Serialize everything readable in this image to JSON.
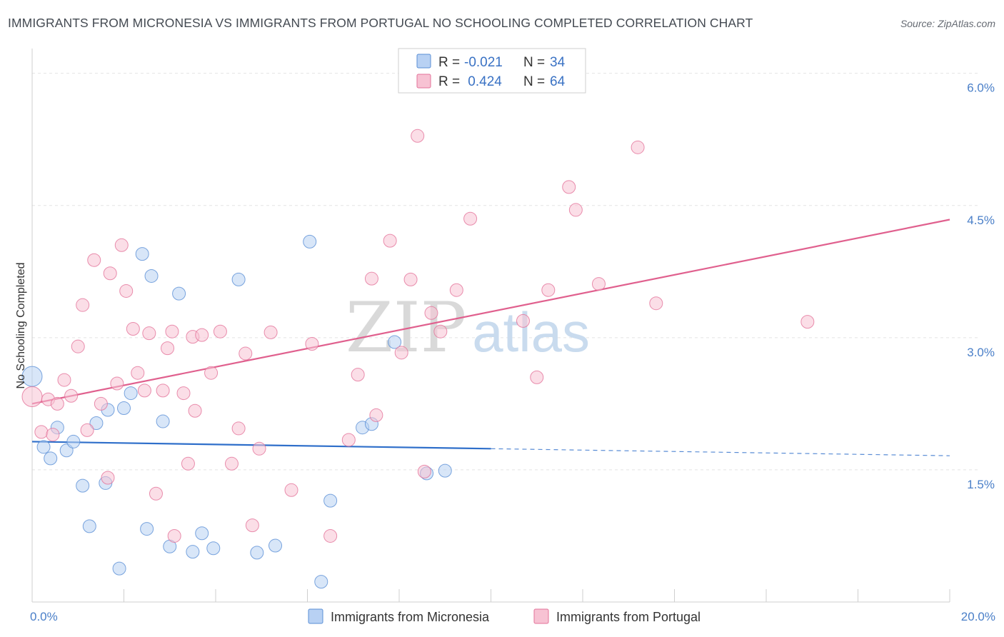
{
  "title": "IMMIGRANTS FROM MICRONESIA VS IMMIGRANTS FROM PORTUGAL NO SCHOOLING COMPLETED CORRELATION CHART",
  "source": "Source: ZipAtlas.com",
  "watermark": {
    "zip": "ZIP",
    "atlas": "atlas"
  },
  "colors": {
    "micronesia": "#5a8fd6",
    "micronesia_fill": "#b8d1f3",
    "portugal": "#e3739a",
    "portugal_fill": "#f7c2d3",
    "tick": "#4a7fc8"
  },
  "legend": {
    "rows": [
      {
        "r_label": "R = ",
        "r_value": "-0.021",
        "n_label": "N = ",
        "n_value": "34"
      },
      {
        "r_label": "R = ",
        "r_value": " 0.424",
        "n_label": "N = ",
        "n_value": "64"
      }
    ]
  },
  "chart_data": {
    "type": "scatter",
    "ylabel": "No Schooling Completed",
    "xlim": [
      0,
      20
    ],
    "ylim": [
      0,
      6.2
    ],
    "x_tick_labels": [
      {
        "v": 0,
        "label": "0.0%"
      },
      {
        "v": 20,
        "label": "20.0%"
      }
    ],
    "y_tick_labels": [
      {
        "v": 1.5,
        "label": "1.5%"
      },
      {
        "v": 3.0,
        "label": "3.0%"
      },
      {
        "v": 4.5,
        "label": "4.5%"
      },
      {
        "v": 6.0,
        "label": "6.0%"
      }
    ],
    "series": [
      {
        "name": "Immigrants from Micronesia",
        "trend": {
          "x0": 0,
          "y0": 1.82,
          "x1": 10,
          "y1": 1.74,
          "dash_x1": 20,
          "dash_y1": 1.66
        },
        "points": [
          [
            0.0,
            2.56
          ],
          [
            0.25,
            1.76
          ],
          [
            0.4,
            1.63
          ],
          [
            0.55,
            1.98
          ],
          [
            0.75,
            1.72
          ],
          [
            0.9,
            1.82
          ],
          [
            1.1,
            1.32
          ],
          [
            1.25,
            0.86
          ],
          [
            1.4,
            2.03
          ],
          [
            1.6,
            1.35
          ],
          [
            1.65,
            2.18
          ],
          [
            1.9,
            0.38
          ],
          [
            2.0,
            2.2
          ],
          [
            2.15,
            2.37
          ],
          [
            2.4,
            3.95
          ],
          [
            2.5,
            0.83
          ],
          [
            2.6,
            3.7
          ],
          [
            2.85,
            2.05
          ],
          [
            3.0,
            0.63
          ],
          [
            3.2,
            3.5
          ],
          [
            3.5,
            0.57
          ],
          [
            3.7,
            0.78
          ],
          [
            3.95,
            0.61
          ],
          [
            4.5,
            3.66
          ],
          [
            4.9,
            0.56
          ],
          [
            5.3,
            0.64
          ],
          [
            6.05,
            4.09
          ],
          [
            6.3,
            0.23
          ],
          [
            6.5,
            1.15
          ],
          [
            7.2,
            1.98
          ],
          [
            7.4,
            2.02
          ],
          [
            7.9,
            2.95
          ],
          [
            8.6,
            1.46
          ],
          [
            9.0,
            1.49
          ]
        ]
      },
      {
        "name": "Immigrants from Portugal",
        "trend": {
          "x0": 0,
          "y0": 2.25,
          "x1": 20,
          "y1": 4.34
        },
        "points": [
          [
            0.0,
            2.33
          ],
          [
            0.2,
            1.93
          ],
          [
            0.35,
            2.3
          ],
          [
            0.45,
            1.9
          ],
          [
            0.55,
            2.25
          ],
          [
            0.7,
            2.52
          ],
          [
            0.85,
            2.34
          ],
          [
            1.0,
            2.9
          ],
          [
            1.1,
            3.37
          ],
          [
            1.2,
            1.95
          ],
          [
            1.35,
            3.88
          ],
          [
            1.5,
            2.25
          ],
          [
            1.65,
            1.41
          ],
          [
            1.7,
            3.73
          ],
          [
            1.85,
            2.48
          ],
          [
            1.95,
            4.05
          ],
          [
            2.05,
            3.53
          ],
          [
            2.2,
            3.1
          ],
          [
            2.3,
            2.6
          ],
          [
            2.45,
            2.4
          ],
          [
            2.55,
            3.05
          ],
          [
            2.7,
            1.23
          ],
          [
            2.85,
            2.4
          ],
          [
            2.95,
            2.88
          ],
          [
            3.05,
            3.07
          ],
          [
            3.3,
            2.37
          ],
          [
            3.4,
            1.57
          ],
          [
            3.5,
            3.01
          ],
          [
            3.55,
            2.17
          ],
          [
            3.7,
            3.03
          ],
          [
            3.9,
            2.6
          ],
          [
            4.1,
            3.07
          ],
          [
            4.35,
            1.57
          ],
          [
            4.5,
            1.97
          ],
          [
            4.65,
            2.82
          ],
          [
            4.8,
            0.87
          ],
          [
            4.95,
            1.74
          ],
          [
            5.2,
            3.06
          ],
          [
            5.65,
            1.27
          ],
          [
            6.1,
            2.93
          ],
          [
            6.5,
            0.75
          ],
          [
            6.9,
            1.84
          ],
          [
            7.1,
            2.58
          ],
          [
            7.4,
            3.67
          ],
          [
            7.5,
            2.12
          ],
          [
            7.8,
            4.1
          ],
          [
            8.05,
            2.83
          ],
          [
            8.25,
            3.66
          ],
          [
            8.4,
            5.29
          ],
          [
            8.7,
            3.28
          ],
          [
            8.9,
            3.07
          ],
          [
            8.55,
            1.48
          ],
          [
            9.25,
            3.54
          ],
          [
            9.55,
            4.35
          ],
          [
            10.7,
            3.19
          ],
          [
            11.0,
            2.55
          ],
          [
            11.25,
            3.54
          ],
          [
            11.7,
            4.71
          ],
          [
            11.85,
            4.45
          ],
          [
            12.35,
            3.61
          ],
          [
            13.2,
            5.16
          ],
          [
            13.6,
            3.39
          ],
          [
            16.9,
            3.18
          ],
          [
            3.1,
            0.75
          ]
        ]
      }
    ]
  }
}
